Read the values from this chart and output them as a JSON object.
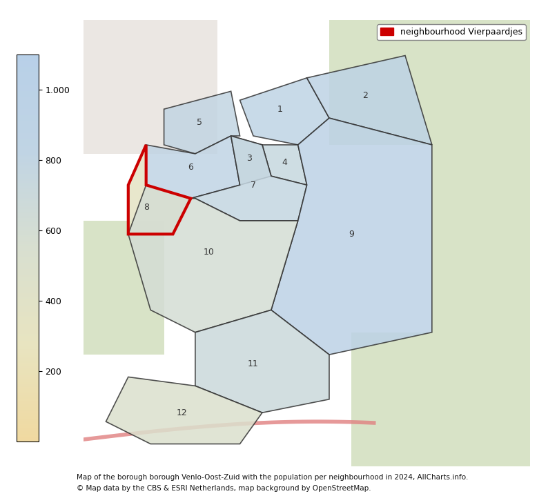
{
  "title": "",
  "caption_line1": "Map of the borough borough Venlo-Oost-Zuid with the population per neighbourhood in 2024, AllCharts.info.",
  "caption_line2": "© Map data by the CBS & ESRI Netherlands, map background by OpenStreetMap.",
  "legend_label": "neighbourhood Vierpaardjes",
  "legend_color": "#cc0000",
  "colorbar_min": 0,
  "colorbar_max": 1100,
  "colorbar_ticks": [
    200,
    400,
    600,
    800,
    1000
  ],
  "colorbar_tick_labels": [
    "200",
    "400",
    "600",
    "800",
    "1.000"
  ],
  "colormap_colors": [
    "#f5e6c0",
    "#c8d8e8",
    "#b0cce0"
  ],
  "background_color": "#ffffff",
  "map_bg_color": "#e8e0d0",
  "neighbourhood_numbers": [
    "1",
    "2",
    "3",
    "4",
    "5",
    "6",
    "7",
    "8",
    "9",
    "10",
    "11",
    "12"
  ],
  "highlight_number": "8",
  "highlight_color": "#cc0000",
  "neighbourhood_colors_values": [
    850,
    900,
    700,
    750,
    800,
    820,
    780,
    350,
    950,
    600,
    700,
    500
  ],
  "figsize": [
    7.94,
    7.19
  ],
  "dpi": 100
}
